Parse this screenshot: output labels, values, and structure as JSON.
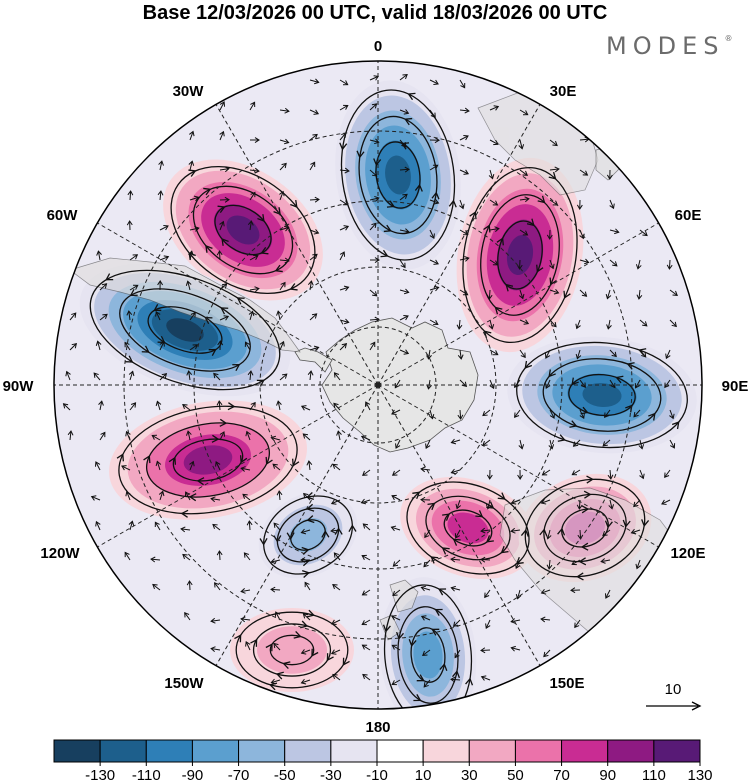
{
  "title": "Base 12/03/2026 00 UTC, valid 18/03/2026 00 UTC",
  "brand": "MODES",
  "brand_mark": "®",
  "map": {
    "projection": "south polar stereographic",
    "longitude_labels": [
      "0",
      "30E",
      "60E",
      "90E",
      "120E",
      "150E",
      "180",
      "150W",
      "120W",
      "90W",
      "60W",
      "30W"
    ],
    "vector_reference": "10"
  },
  "colorbar": {
    "ticks": [
      "-130",
      "-110",
      "-90",
      "-70",
      "-50",
      "-30",
      "-10",
      "10",
      "30",
      "50",
      "70",
      "90",
      "110",
      "130"
    ],
    "colors": [
      "#173f5f",
      "#1d5f8c",
      "#2e7fb7",
      "#5b9fcf",
      "#8db6dc",
      "#bcc6e3",
      "#e6e4f1",
      "#ffffff",
      "#f8d6dc",
      "#f2a8c2",
      "#eb72aa",
      "#c92c93",
      "#8e1a82",
      "#581a76"
    ]
  },
  "features": {
    "anomaly_centers": [
      {
        "name": "negative-anomaly-atlantic",
        "value": -110
      },
      {
        "name": "positive-anomaly-southwest-atlantic",
        "value": 110
      },
      {
        "name": "negative-anomaly-south-pacific-east",
        "value": -130
      },
      {
        "name": "positive-anomaly-southeast-pacific",
        "value": 100
      },
      {
        "name": "negative-anomaly-south-pacific",
        "value": -50
      },
      {
        "name": "positive-anomaly-south-pacific-west",
        "value": 40
      },
      {
        "name": "negative-anomaly-ross-sea",
        "value": -80
      },
      {
        "name": "positive-anomaly-south-of-australia",
        "value": 80
      },
      {
        "name": "positive-anomaly-south-of-tasmania",
        "value": 70
      },
      {
        "name": "negative-anomaly-indian-ocean-east",
        "value": -110
      },
      {
        "name": "positive-anomaly-indian-ocean",
        "value": 110
      }
    ]
  }
}
